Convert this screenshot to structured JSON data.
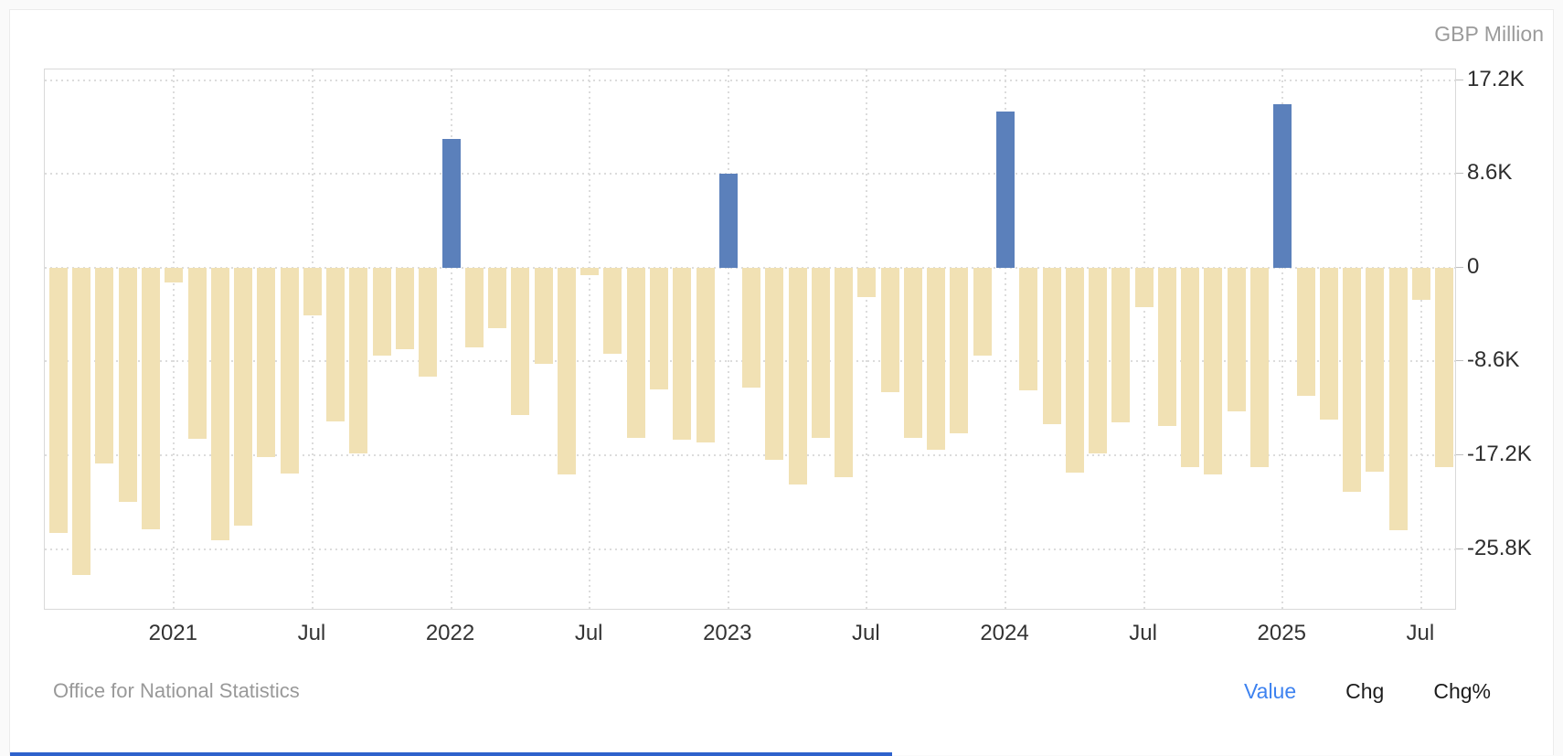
{
  "header": {
    "unit_label": "GBP Million"
  },
  "footer": {
    "source": "Office for National Statistics",
    "modes": [
      {
        "label": "Value",
        "active": true
      },
      {
        "label": "Chg",
        "active": false
      },
      {
        "label": "Chg%",
        "active": false
      }
    ]
  },
  "colors": {
    "bar_negative": "#f1e1b4",
    "bar_positive": "#5b80bb",
    "gridline": "#dcdcdc",
    "axis_border": "#d9d9d9",
    "y_label_text": "#2d2d2d",
    "x_label_text": "#333333",
    "muted_text": "#999999",
    "active_mode_text": "#3d82f0",
    "bottom_strip": "#2e62cc"
  },
  "chart_data": {
    "type": "bar",
    "title": "",
    "ylabel": "GBP Million",
    "xlabel": "",
    "grid": "dotted",
    "legend_position": "none",
    "ylim": [
      -31400,
      18100
    ],
    "x": [
      "2020-08",
      "2020-09",
      "2020-10",
      "2020-11",
      "2020-12",
      "2021-01",
      "2021-02",
      "2021-03",
      "2021-04",
      "2021-05",
      "2021-06",
      "2021-07",
      "2021-08",
      "2021-09",
      "2021-10",
      "2021-11",
      "2021-12",
      "2022-01",
      "2022-02",
      "2022-03",
      "2022-04",
      "2022-05",
      "2022-06",
      "2022-07",
      "2022-08",
      "2022-09",
      "2022-10",
      "2022-11",
      "2022-12",
      "2023-01",
      "2023-02",
      "2023-03",
      "2023-04",
      "2023-05",
      "2023-06",
      "2023-07",
      "2023-08",
      "2023-09",
      "2023-10",
      "2023-11",
      "2023-12",
      "2024-01",
      "2024-02",
      "2024-03",
      "2024-04",
      "2024-05",
      "2024-06",
      "2024-07",
      "2024-08",
      "2024-09",
      "2024-10",
      "2024-11",
      "2024-12",
      "2025-01",
      "2025-02",
      "2025-03",
      "2025-04",
      "2025-05",
      "2025-06",
      "2025-07",
      "2025-08"
    ],
    "values": [
      -24300,
      -28200,
      -18000,
      -21500,
      -24000,
      -1400,
      -15700,
      -25000,
      -23700,
      -17400,
      -18900,
      -4400,
      -14100,
      -17000,
      -8100,
      -7500,
      -10000,
      11800,
      -7300,
      -5600,
      -13500,
      -8800,
      -19000,
      -700,
      -7900,
      -15600,
      -11200,
      -15800,
      -16000,
      8600,
      -11000,
      -17600,
      -19900,
      -15600,
      -19200,
      -2700,
      -11400,
      -15600,
      -16700,
      -15200,
      -8100,
      14300,
      -11300,
      -14400,
      -18800,
      -17000,
      -14200,
      -3600,
      -14500,
      -18300,
      -19000,
      -13200,
      -18300,
      15000,
      -11800,
      -13900,
      -20600,
      -18700,
      -24100,
      -3000,
      -18300
    ],
    "y_ticks": [
      {
        "value": 17200,
        "label": "17.2K"
      },
      {
        "value": 8600,
        "label": "8.6K"
      },
      {
        "value": 0,
        "label": "0"
      },
      {
        "value": -8600,
        "label": "-8.6K"
      },
      {
        "value": -17200,
        "label": "-17.2K"
      },
      {
        "value": -25800,
        "label": "-25.8K"
      }
    ],
    "x_ticks": [
      {
        "index": 5,
        "label": "2021"
      },
      {
        "index": 11,
        "label": "Jul"
      },
      {
        "index": 17,
        "label": "2022"
      },
      {
        "index": 23,
        "label": "Jul"
      },
      {
        "index": 29,
        "label": "2023"
      },
      {
        "index": 35,
        "label": "Jul"
      },
      {
        "index": 41,
        "label": "2024"
      },
      {
        "index": 47,
        "label": "Jul"
      },
      {
        "index": 53,
        "label": "2025"
      },
      {
        "index": 59,
        "label": "Jul"
      }
    ]
  }
}
